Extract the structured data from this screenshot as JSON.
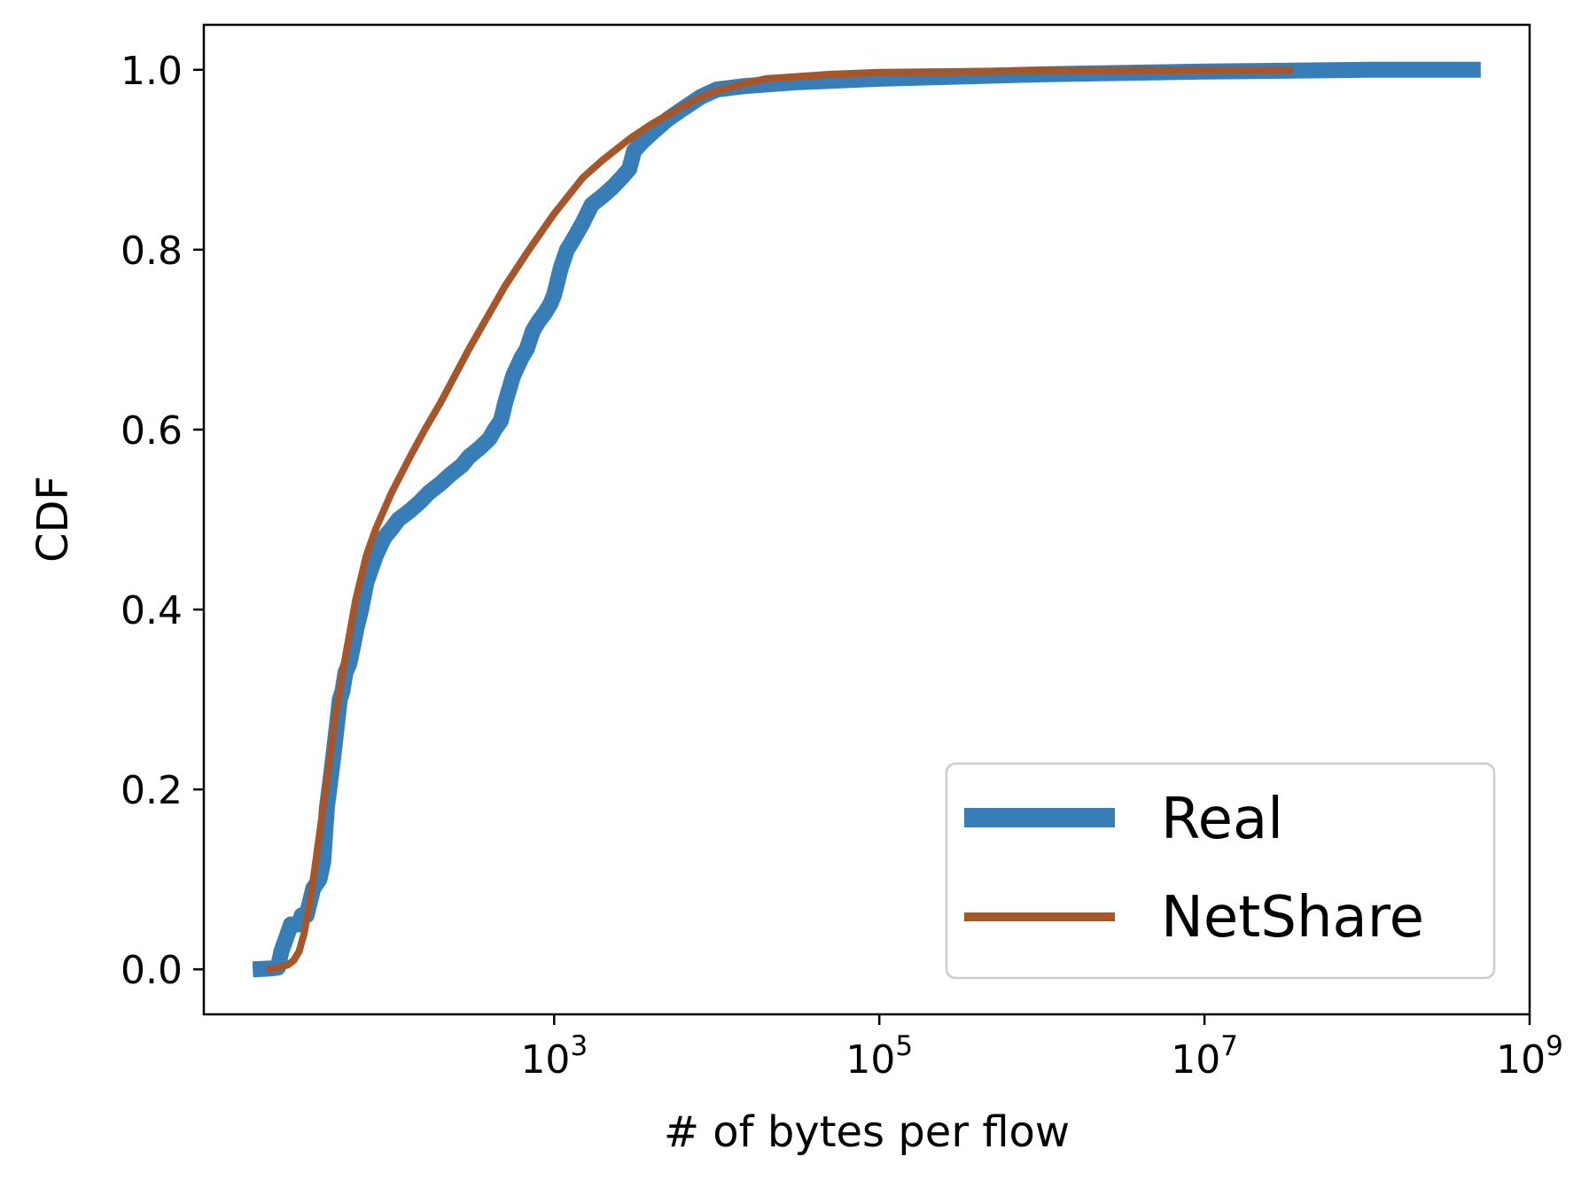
{
  "chart_data": {
    "type": "line",
    "title": "",
    "xlabel": "# of bytes per flow",
    "ylabel": "CDF",
    "xscale": "log",
    "xlim": [
      7,
      1000000000
    ],
    "ylim": [
      -0.05,
      1.05
    ],
    "grid": false,
    "legend_position": "lower-right",
    "x_ticks": [
      {
        "value": 1000,
        "base": "10",
        "exp": "3"
      },
      {
        "value": 100000,
        "base": "10",
        "exp": "5"
      },
      {
        "value": 10000000,
        "base": "10",
        "exp": "7"
      },
      {
        "value": 1000000000,
        "base": "10",
        "exp": "9"
      }
    ],
    "y_ticks": [
      {
        "value": 0.0,
        "label": "0.0"
      },
      {
        "value": 0.2,
        "label": "0.2"
      },
      {
        "value": 0.4,
        "label": "0.4"
      },
      {
        "value": 0.6,
        "label": "0.6"
      },
      {
        "value": 0.8,
        "label": "0.8"
      },
      {
        "value": 1.0,
        "label": "1.0"
      }
    ],
    "series": [
      {
        "name": "Real",
        "color": "#377eb8",
        "x": [
          14,
          18,
          20,
          21,
          23,
          24,
          25,
          27,
          28,
          30,
          33,
          36,
          38,
          39,
          40,
          42,
          44,
          46,
          48,
          50,
          52,
          55,
          58,
          61,
          65,
          70,
          80,
          90,
          100,
          110,
          130,
          150,
          170,
          200,
          230,
          270,
          300,
          350,
          400,
          430,
          470,
          500,
          560,
          630,
          680,
          740,
          800,
          880,
          950,
          1000,
          1100,
          1200,
          1300,
          1500,
          1700,
          2000,
          2300,
          2600,
          2900,
          3100,
          3500,
          4000,
          5000,
          6000,
          8000,
          10000,
          15000,
          30000,
          100000,
          1000000,
          10000000,
          100000000,
          500000000
        ],
        "y": [
          0.0,
          0.001,
          0.002,
          0.02,
          0.04,
          0.05,
          0.05,
          0.05,
          0.06,
          0.06,
          0.09,
          0.1,
          0.12,
          0.15,
          0.18,
          0.21,
          0.24,
          0.27,
          0.3,
          0.31,
          0.33,
          0.34,
          0.36,
          0.38,
          0.4,
          0.43,
          0.46,
          0.48,
          0.49,
          0.5,
          0.51,
          0.52,
          0.53,
          0.54,
          0.55,
          0.56,
          0.57,
          0.58,
          0.59,
          0.6,
          0.61,
          0.63,
          0.66,
          0.68,
          0.69,
          0.71,
          0.72,
          0.73,
          0.74,
          0.75,
          0.78,
          0.8,
          0.81,
          0.83,
          0.85,
          0.86,
          0.87,
          0.88,
          0.89,
          0.91,
          0.92,
          0.93,
          0.945,
          0.955,
          0.97,
          0.978,
          0.982,
          0.986,
          0.99,
          0.995,
          0.998,
          1.0,
          1.0
        ]
      },
      {
        "name": "NetShare",
        "color": "#a65628",
        "x": [
          17,
          20,
          23,
          25,
          27,
          29,
          31,
          33,
          36,
          40,
          45,
          50,
          60,
          70,
          80,
          100,
          130,
          160,
          200,
          300,
          500,
          700,
          1000,
          1500,
          2000,
          3000,
          4000,
          6000,
          8000,
          10000,
          15000,
          20000,
          50000,
          100000,
          1000000,
          10000000,
          35000000
        ],
        "y": [
          0.0,
          0.002,
          0.005,
          0.01,
          0.02,
          0.04,
          0.07,
          0.1,
          0.15,
          0.21,
          0.28,
          0.33,
          0.41,
          0.46,
          0.49,
          0.53,
          0.57,
          0.6,
          0.63,
          0.69,
          0.76,
          0.8,
          0.84,
          0.88,
          0.9,
          0.925,
          0.94,
          0.958,
          0.97,
          0.977,
          0.985,
          0.99,
          0.995,
          0.997,
          0.999,
          1.0,
          1.0
        ]
      }
    ]
  }
}
